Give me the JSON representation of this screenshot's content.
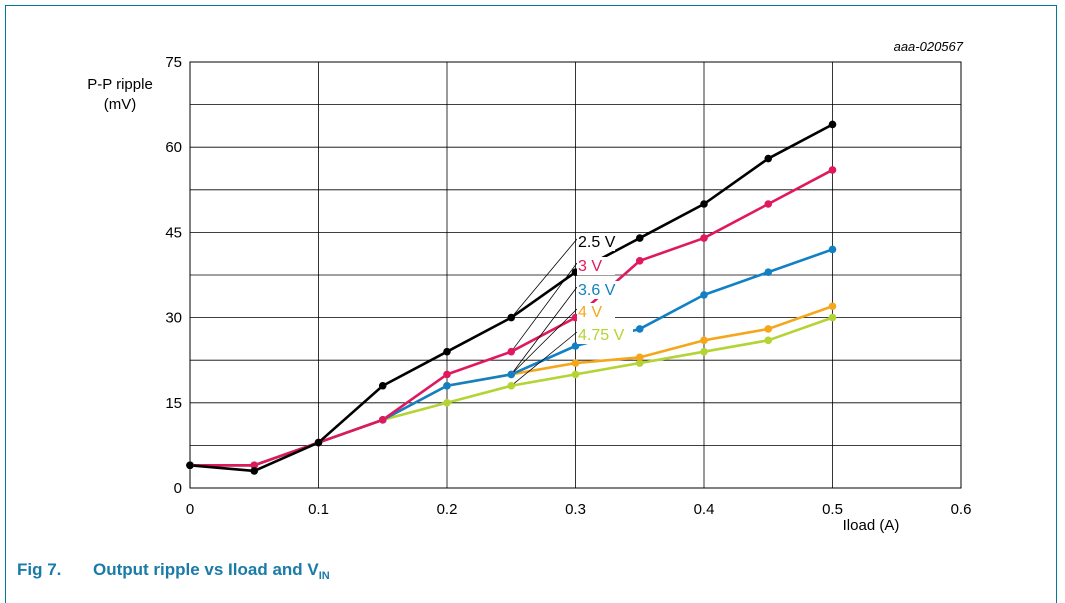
{
  "figure": {
    "id_text": "aaa-020567",
    "caption_number": "Fig 7.",
    "caption_text": "Output ripple vs Iload and V",
    "caption_subscript": "IN"
  },
  "chart_data": {
    "type": "line",
    "title": "",
    "xlabel": "Iload (A)",
    "ylabel_line1": "P-P ripple",
    "ylabel_line2": "(mV)",
    "xlim": [
      0,
      0.6
    ],
    "ylim": [
      0,
      75
    ],
    "xticks": [
      0,
      0.1,
      0.2,
      0.3,
      0.4,
      0.5,
      0.6
    ],
    "yticks": [
      0,
      15,
      30,
      45,
      60,
      75
    ],
    "xtick_labels": [
      "0",
      "0.1",
      "0.2",
      "0.3",
      "0.4",
      "0.5",
      "0.6"
    ],
    "ytick_labels": [
      "0",
      "15",
      "30",
      "45",
      "60",
      "75"
    ],
    "grid": true,
    "x": [
      0,
      0.05,
      0.1,
      0.15,
      0.2,
      0.25,
      0.3,
      0.35,
      0.4,
      0.45,
      0.5
    ],
    "series": [
      {
        "name": "2.5 V",
        "color": "#000000",
        "values": [
          4,
          3,
          8,
          18,
          24,
          30,
          38,
          44,
          50,
          58,
          64
        ]
      },
      {
        "name": "3 V",
        "color": "#e0185f",
        "values": [
          4,
          4,
          8,
          12,
          20,
          24,
          30,
          40,
          44,
          50,
          56
        ]
      },
      {
        "name": "3.6 V",
        "color": "#1180c4",
        "values": [
          4,
          4,
          8,
          12,
          18,
          20,
          25,
          28,
          34,
          38,
          42
        ]
      },
      {
        "name": "4 V",
        "color": "#f5a71c",
        "values": [
          4,
          4,
          8,
          12,
          18,
          20,
          22,
          23,
          26,
          28,
          32
        ]
      },
      {
        "name": "4.75 V",
        "color": "#b4d334",
        "values": [
          4,
          4,
          8,
          12,
          15,
          18,
          20,
          22,
          24,
          26,
          30
        ]
      }
    ]
  }
}
